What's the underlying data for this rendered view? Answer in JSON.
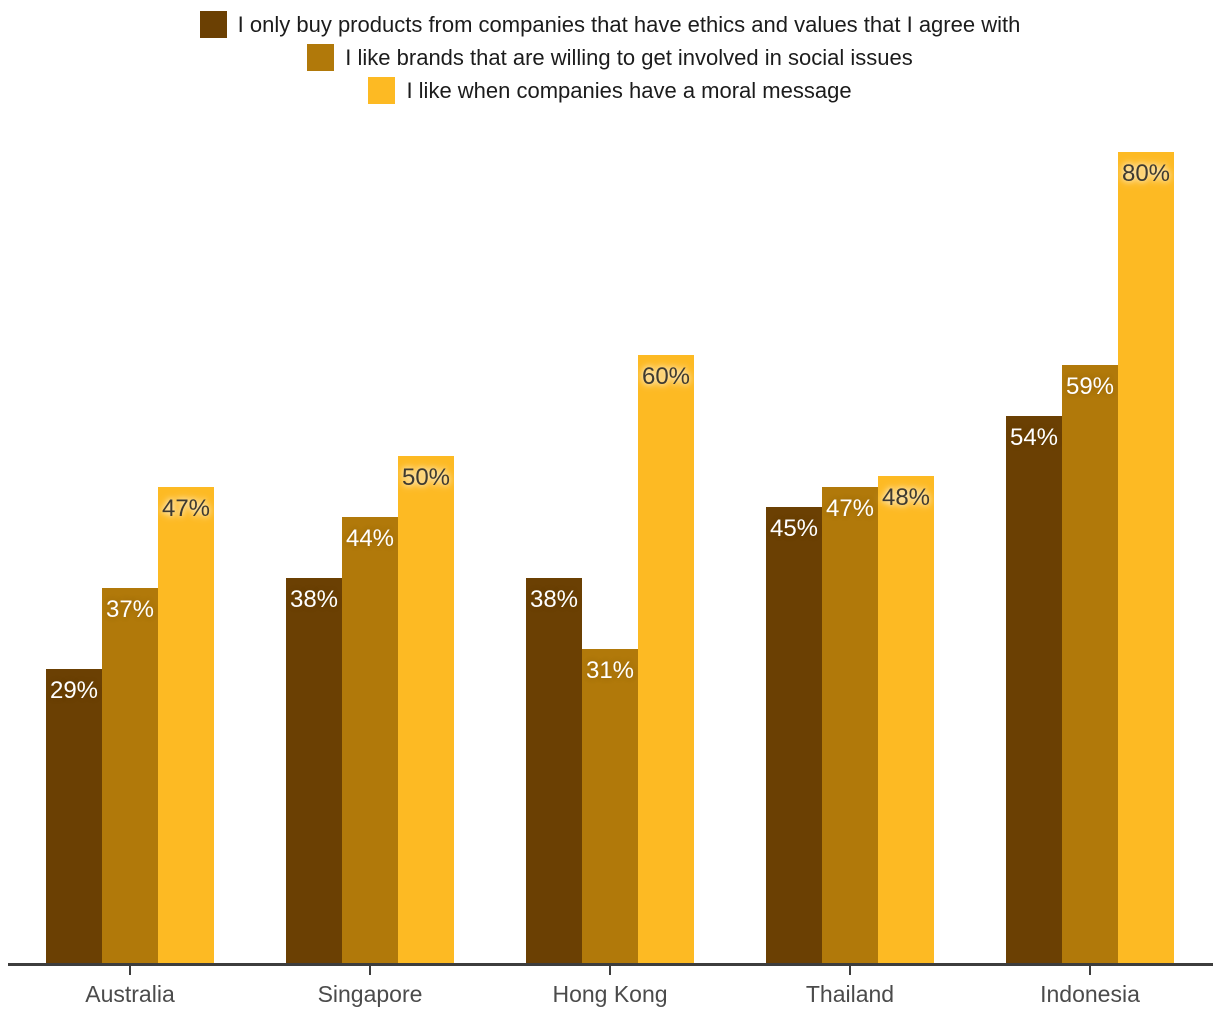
{
  "legend": {
    "items": [
      {
        "label": "I only buy products from companies that have ethics and values that I agree with",
        "color": "#6b4003"
      },
      {
        "label": "I like brands that are willing to get involved in social issues",
        "color": "#b1790a"
      },
      {
        "label": "I like when companies have a moral message",
        "color": "#fdba23"
      }
    ]
  },
  "chart_data": {
    "type": "bar",
    "layout": "grouped-vertical",
    "title": "",
    "xlabel": "",
    "ylabel": "",
    "grid": false,
    "legend_position": "top-center",
    "value_labels": "inside-top",
    "value_suffix": "%",
    "ylim": [
      0,
      80
    ],
    "categories": [
      "Australia",
      "Singapore",
      "Hong Kong",
      "Thailand",
      "Indonesia"
    ],
    "series": [
      {
        "name": "I only buy products from companies that have ethics and values that I agree with",
        "color": "#6b4003",
        "label_style": "light",
        "values": [
          29,
          38,
          38,
          45,
          54
        ]
      },
      {
        "name": "I like brands that are willing to get involved in social issues",
        "color": "#b1790a",
        "label_style": "light",
        "values": [
          37,
          44,
          31,
          47,
          59
        ]
      },
      {
        "name": "I like when companies have a moral message",
        "color": "#fdba23",
        "label_style": "dark",
        "values": [
          47,
          50,
          60,
          48,
          80
        ]
      }
    ],
    "axis_color": "#3d3d3d"
  }
}
